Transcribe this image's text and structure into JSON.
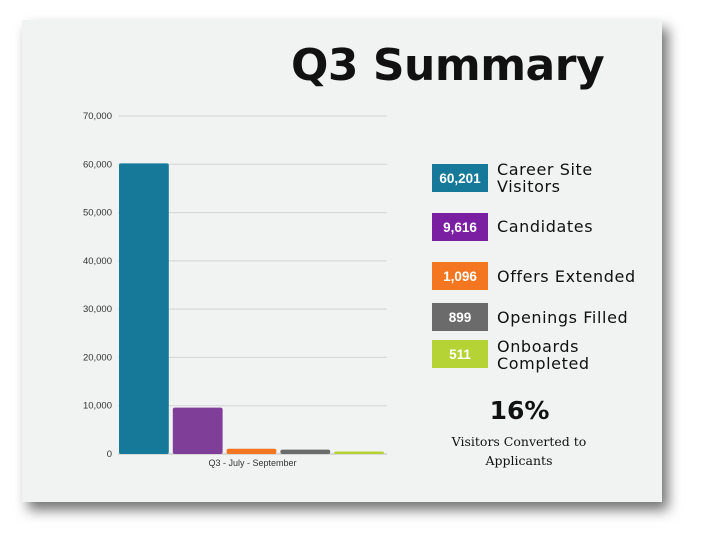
{
  "title": "Q3 Summary",
  "legend": [
    {
      "value": "60,201",
      "label_line1": "Career Site",
      "label_line2": "Visitors",
      "color": "#17799a"
    },
    {
      "value": "9,616",
      "label_line1": "Candidates",
      "label_line2": "",
      "color": "#7a1fa2"
    },
    {
      "value": "1,096",
      "label_line1": "Offers Extended",
      "label_line2": "",
      "color": "#f47621"
    },
    {
      "value": "899",
      "label_line1": "Openings Filled",
      "label_line2": "",
      "color": "#6b6b6b"
    },
    {
      "value": "511",
      "label_line1": "Onboards",
      "label_line2": "Completed",
      "color": "#b5d334"
    }
  ],
  "conversion": {
    "percent": "16%",
    "label": "Visitors Converted to Applicants"
  },
  "chart_data": {
    "type": "bar",
    "categories": [
      "Q3 - July - September"
    ],
    "series": [
      {
        "values": [
          60201
        ],
        "color": "#17799a"
      },
      {
        "values": [
          9616
        ],
        "color": "#7f3f98"
      },
      {
        "values": [
          1096
        ],
        "color": "#f47621"
      },
      {
        "values": [
          899
        ],
        "color": "#6b6b6b"
      },
      {
        "values": [
          511
        ],
        "color": "#b5d334"
      }
    ],
    "xlabel": "",
    "ylabel": "",
    "ylim": [
      0,
      70000
    ],
    "yticks": [
      "0",
      "10,000",
      "20,000",
      "30,000",
      "40,000",
      "50,000",
      "60,000",
      "70,000"
    ],
    "grid": true,
    "legend": "right"
  }
}
